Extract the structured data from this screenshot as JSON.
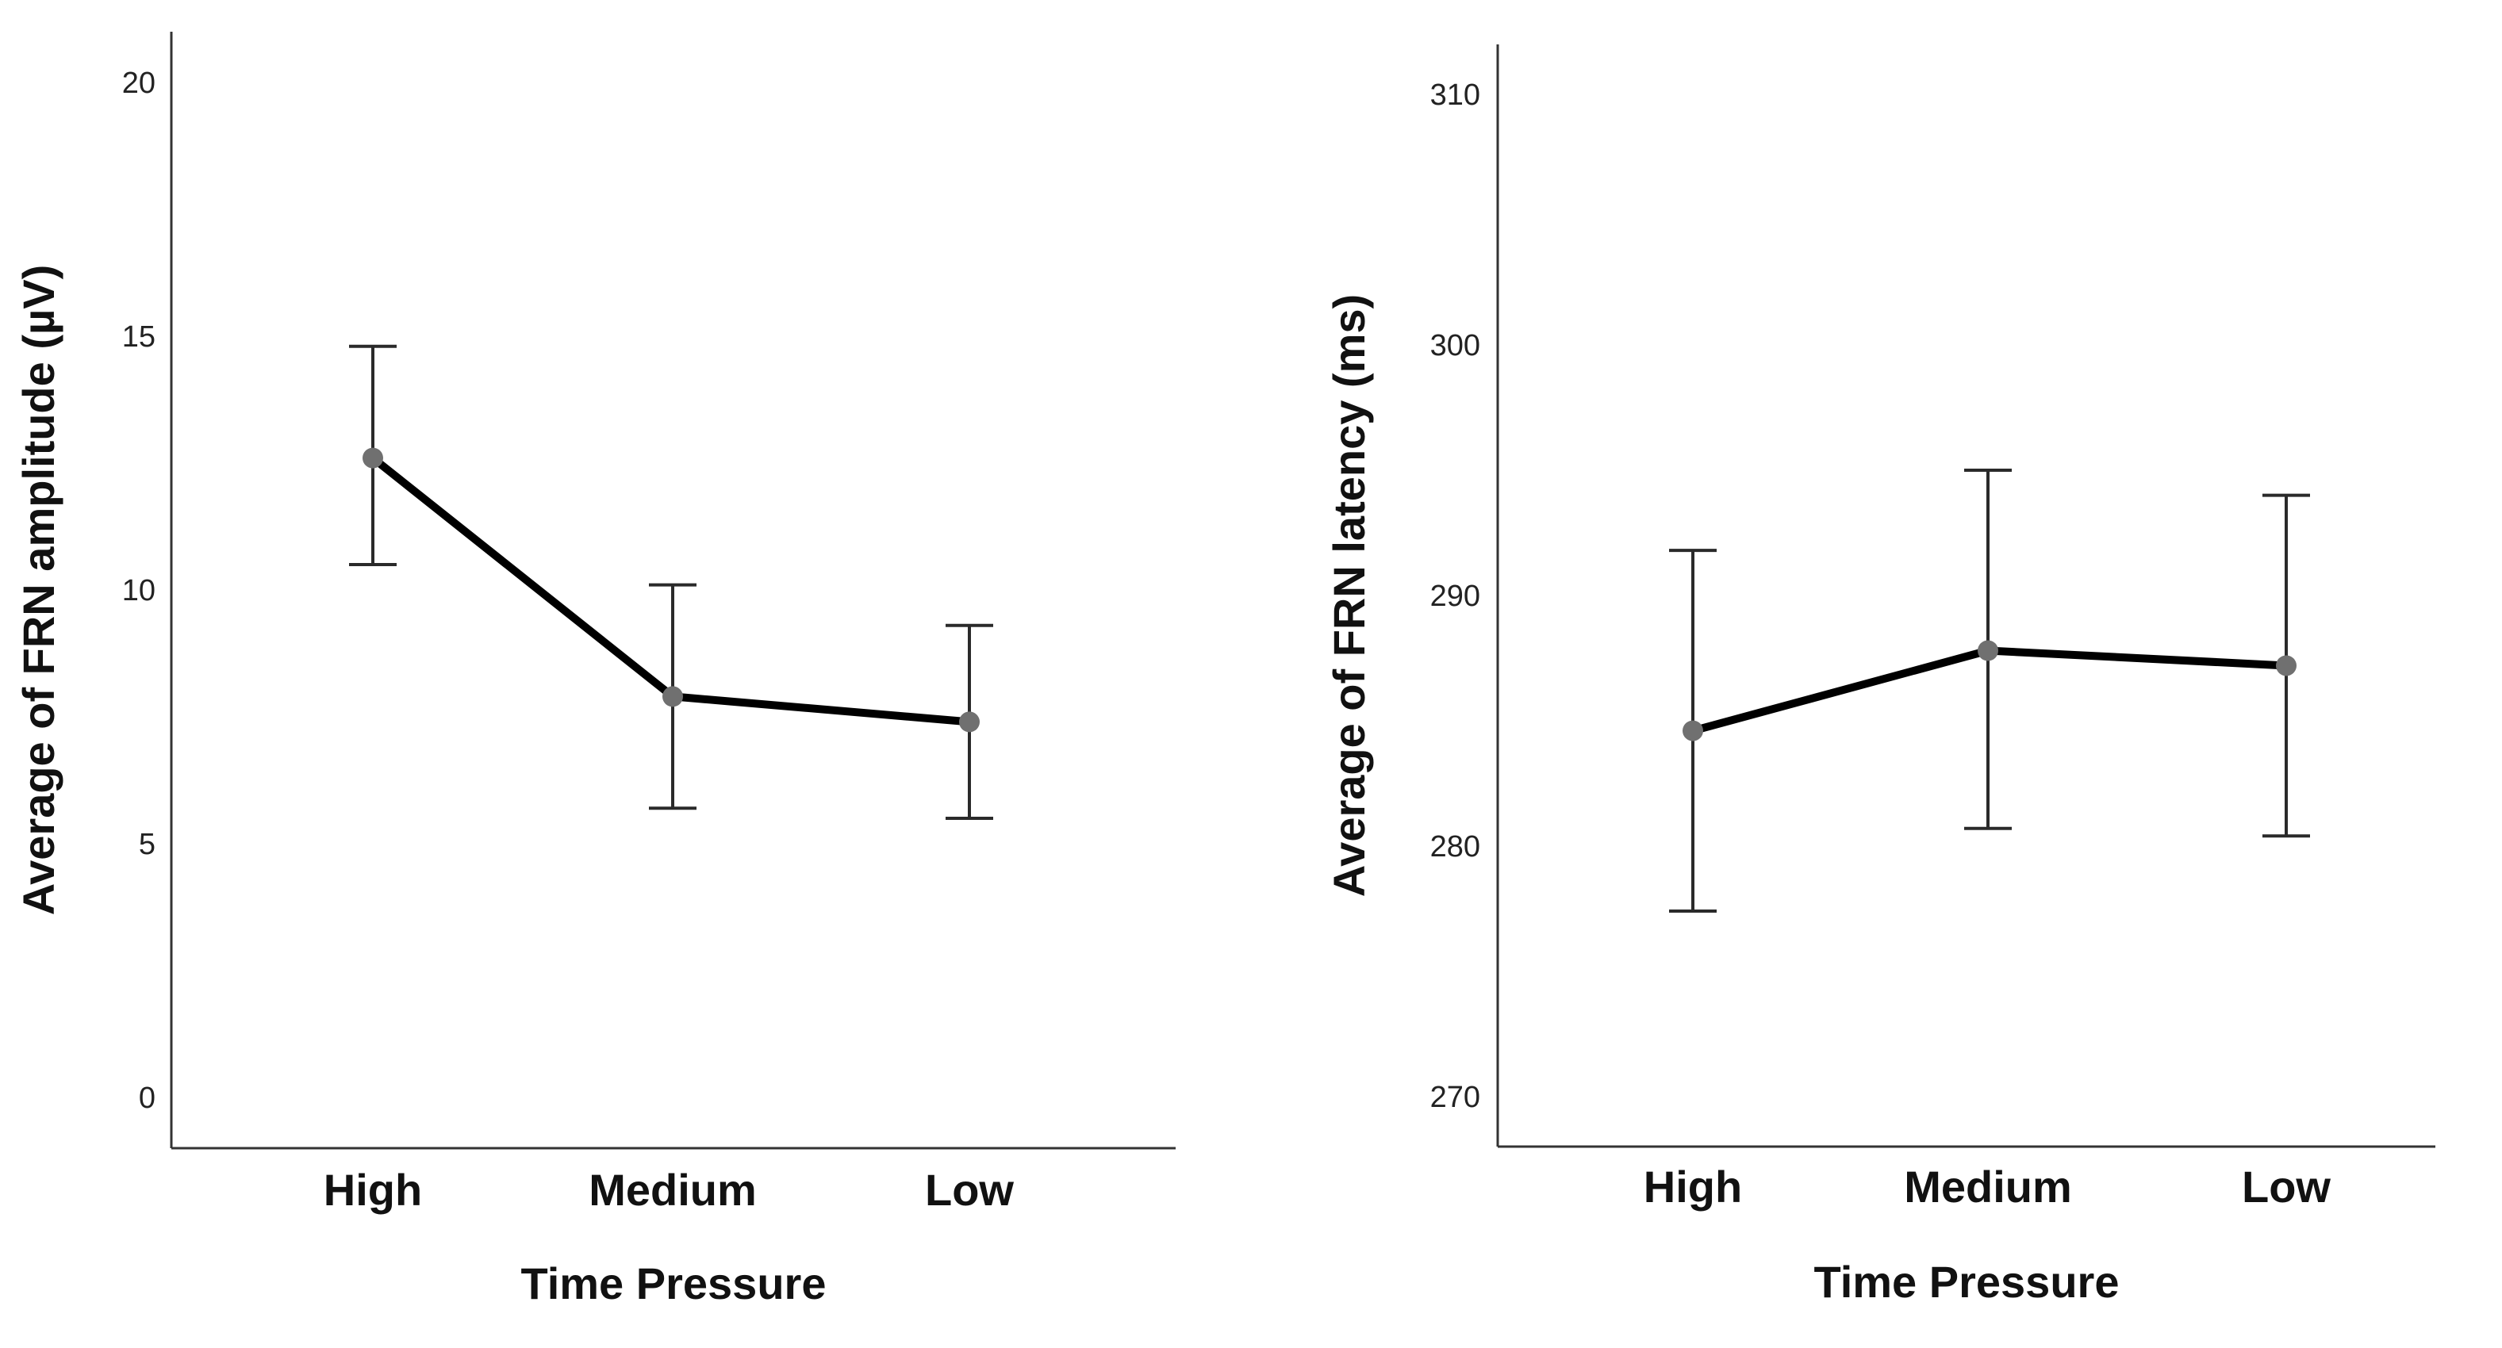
{
  "colors": {
    "line": "#000000",
    "error_bar": "#2a2a2a",
    "point": "#707070",
    "axis": "#333333"
  },
  "chart_data": [
    {
      "type": "line",
      "title": "",
      "categories": [
        "High",
        "Medium",
        "Low"
      ],
      "values": [
        12.6,
        7.9,
        7.4
      ],
      "error_low": [
        10.5,
        5.7,
        5.5
      ],
      "error_high": [
        14.8,
        10.1,
        9.3
      ],
      "xlabel": "Time Pressure",
      "ylabel": "Average of FRN amplitude (µV)",
      "ylim": [
        -1,
        21
      ],
      "yticks": [
        0,
        5,
        10,
        15,
        20
      ],
      "grid": false
    },
    {
      "type": "line",
      "title": "",
      "categories": [
        "High",
        "Medium",
        "Low"
      ],
      "values": [
        284.6,
        287.8,
        287.2
      ],
      "error_low": [
        277.4,
        280.7,
        280.4
      ],
      "error_high": [
        291.8,
        295.0,
        294.0
      ],
      "xlabel": "Time Pressure",
      "ylabel": "Average of FRN latency (ms)",
      "ylim": [
        268,
        312
      ],
      "yticks": [
        270,
        280,
        290,
        300,
        310
      ],
      "grid": false
    }
  ]
}
